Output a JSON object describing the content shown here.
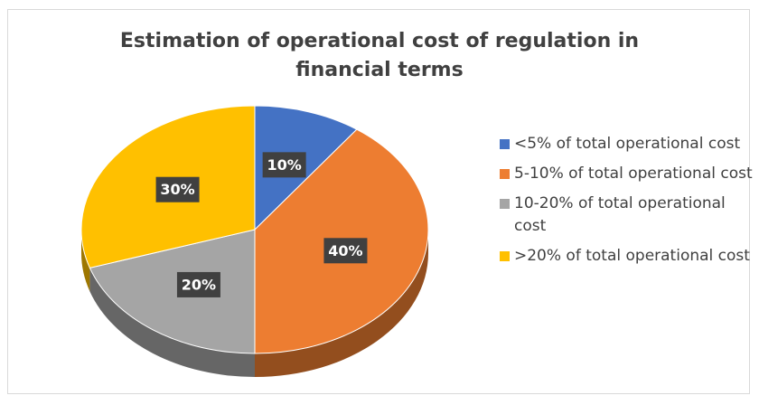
{
  "chart_data": {
    "type": "pie3d",
    "title": "Estimation of operational cost of regulation in financial terms",
    "categories": [
      "<5% of total operational cost",
      "5-10% of total operational cost",
      "10-20% of total operational cost",
      ">20% of total operational cost"
    ],
    "values": [
      10,
      40,
      20,
      30
    ],
    "value_labels": [
      "10%",
      "40%",
      "20%",
      "30%"
    ],
    "colors": [
      "#4472c4",
      "#ed7d31",
      "#a5a5a5",
      "#ffc000"
    ],
    "legend": "right"
  }
}
